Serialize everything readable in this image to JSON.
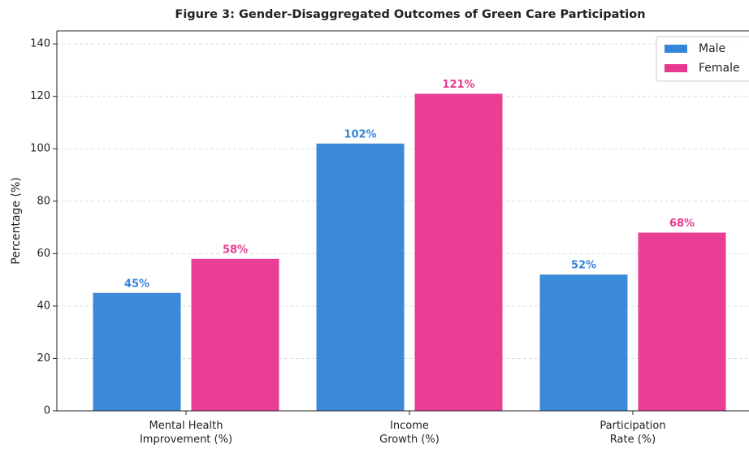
{
  "chart_data": {
    "type": "bar",
    "title": "Figure 3: Gender-Disaggregated Outcomes of Green Care Participation",
    "ylabel": "Percentage (%)",
    "categories": [
      "Mental Health\nImprovement (%)",
      "Income\nGrowth (%)",
      "Participation\nRate (%)"
    ],
    "series": [
      {
        "name": "Male",
        "color": "#3585d8",
        "values": [
          45,
          102,
          52
        ],
        "value_labels": [
          "45%",
          "102%",
          "52%"
        ]
      },
      {
        "name": "Female",
        "color": "#e8388f",
        "values": [
          58,
          121,
          68
        ],
        "value_labels": [
          "58%",
          "121%",
          "68%"
        ]
      }
    ],
    "ylim": [
      0,
      145
    ],
    "yticks": [
      0,
      20,
      40,
      60,
      80,
      100,
      120,
      140
    ],
    "grid": true,
    "legend": "upper right"
  }
}
